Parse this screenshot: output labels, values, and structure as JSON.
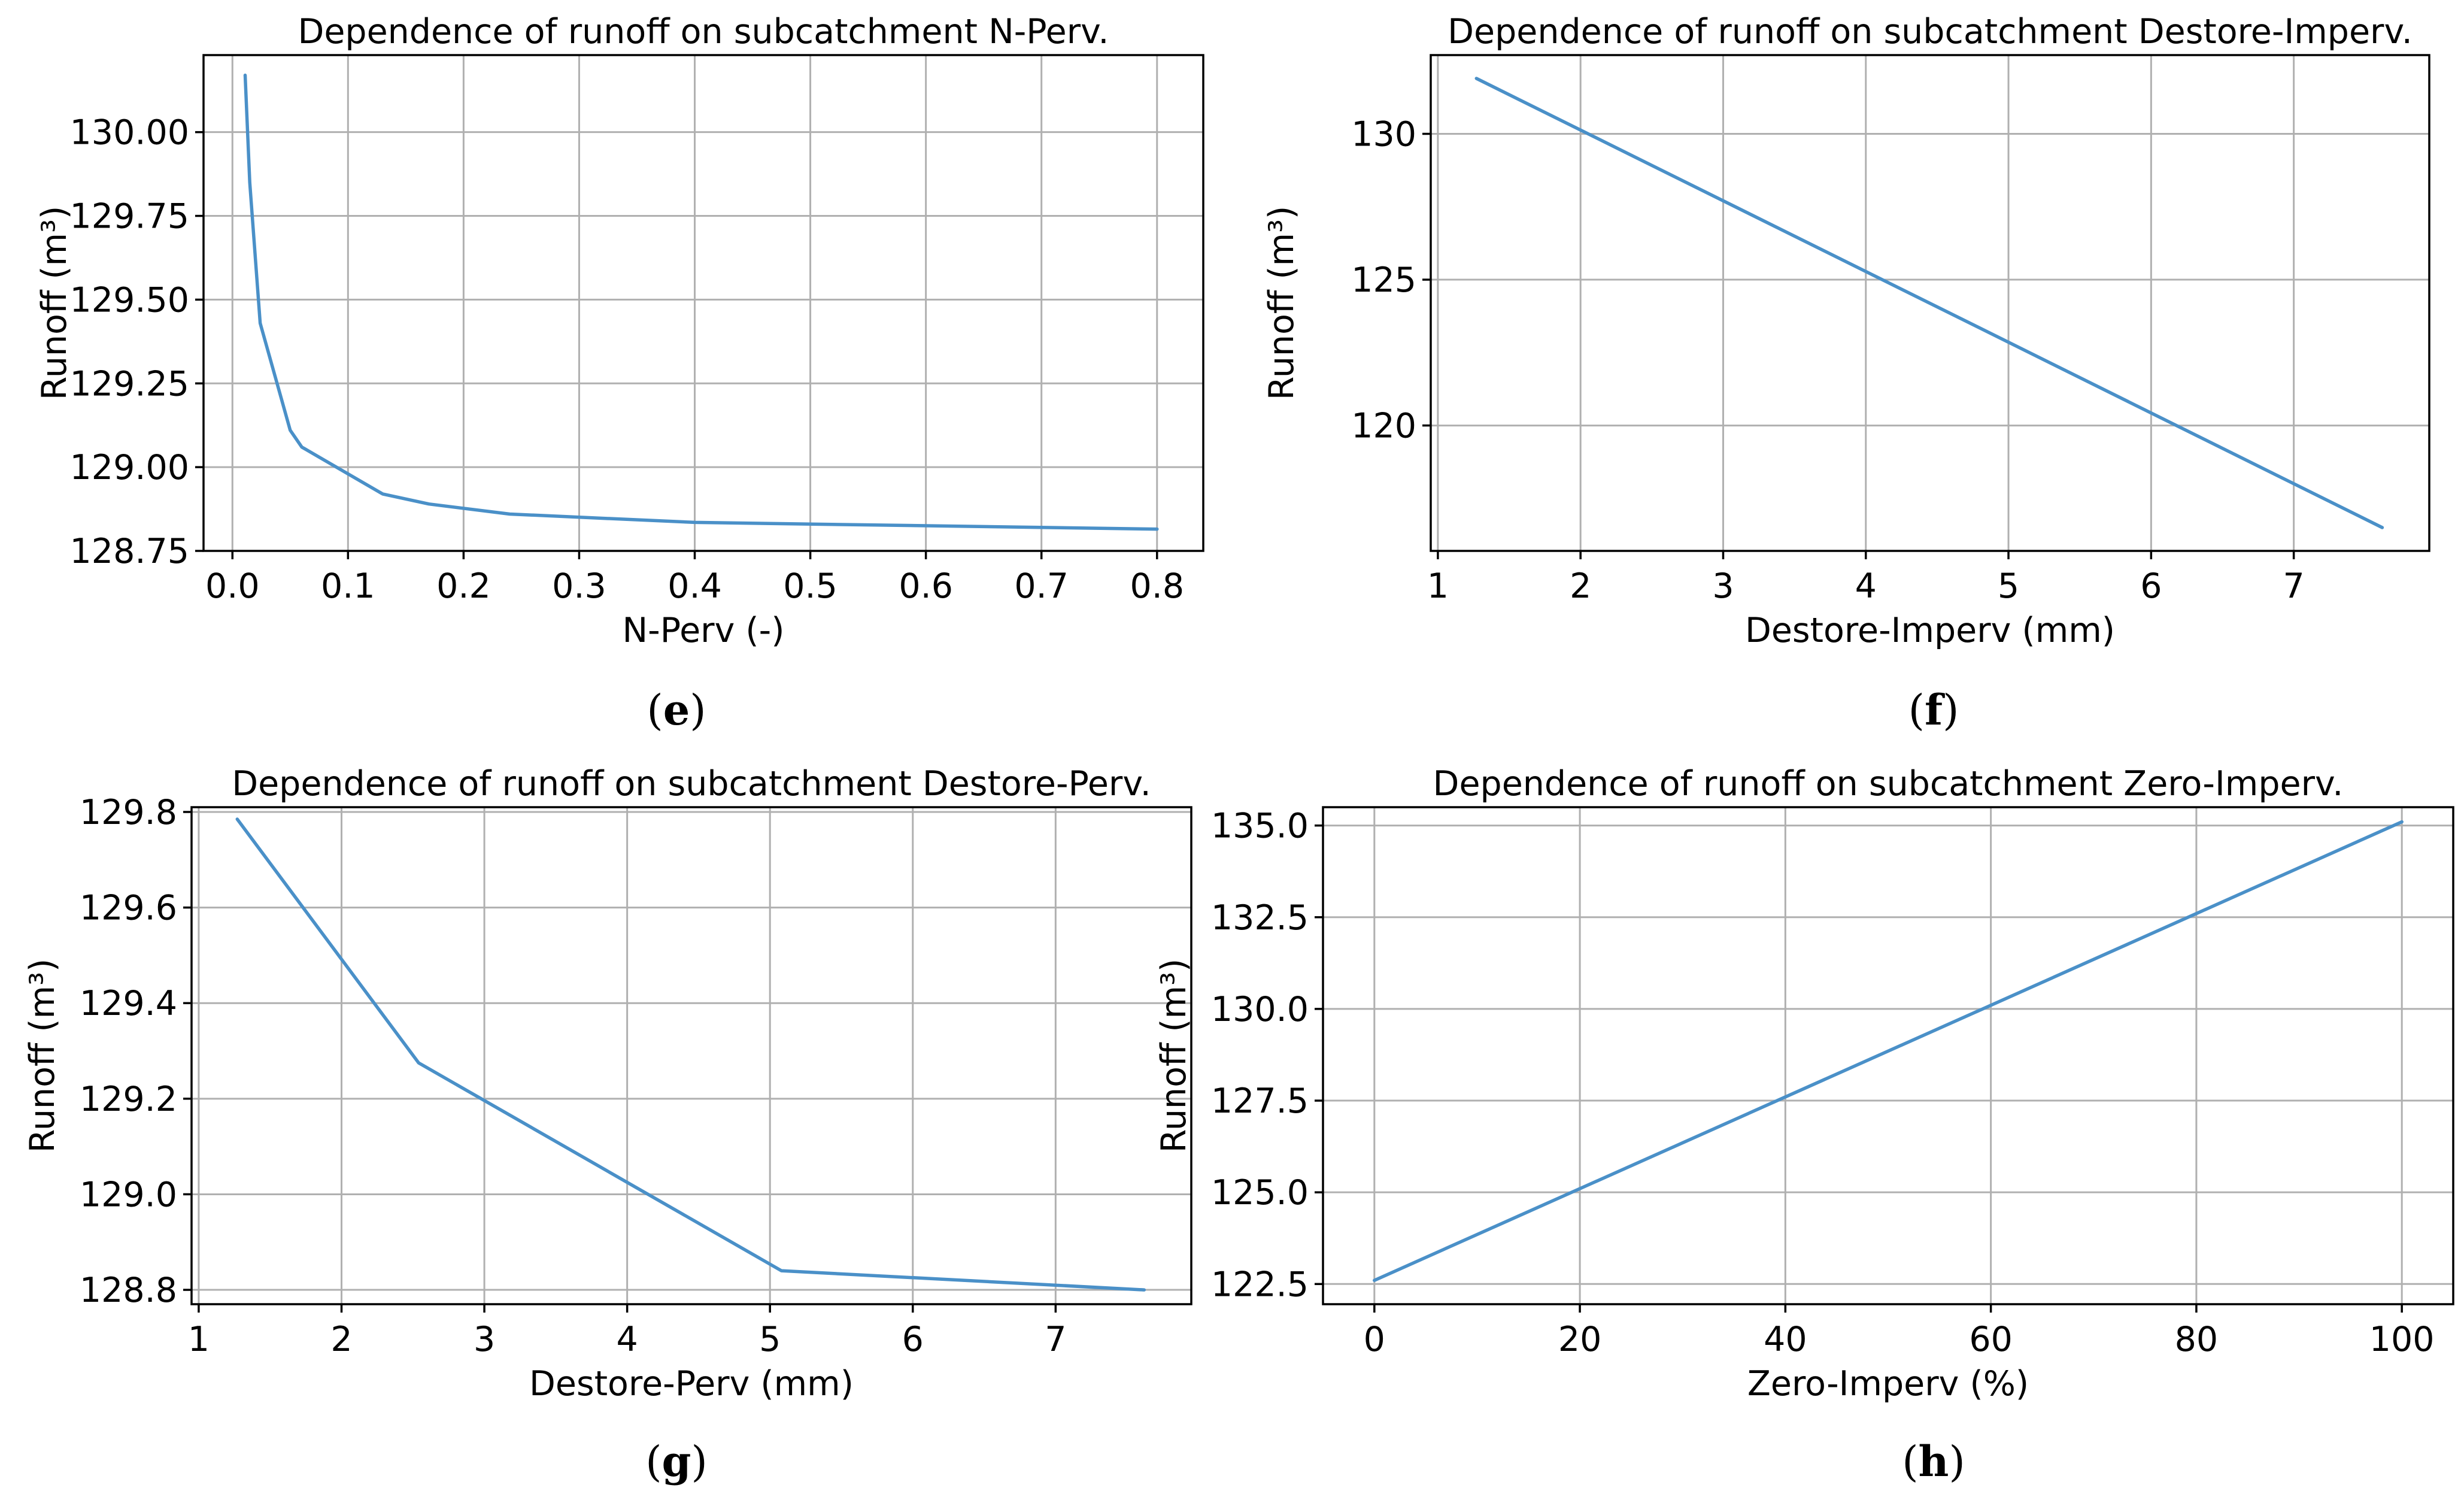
{
  "chart_data": [
    {
      "id": "e",
      "panel_label": "e",
      "type": "line",
      "title": "Dependence of runoff on subcatchment N-Perv.",
      "xlabel": "N-Perv (-)",
      "ylabel": "Runoff (m³)",
      "xlim": [
        -0.025,
        0.84
      ],
      "ylim": [
        128.75,
        130.23
      ],
      "xticks": [
        0.0,
        0.1,
        0.2,
        0.3,
        0.4,
        0.5,
        0.6,
        0.7,
        0.8
      ],
      "xtick_labels": [
        "0.0",
        "0.1",
        "0.2",
        "0.3",
        "0.4",
        "0.5",
        "0.6",
        "0.7",
        "0.8"
      ],
      "yticks": [
        128.75,
        129.0,
        129.25,
        129.5,
        129.75,
        130.0
      ],
      "ytick_labels": [
        "128.75",
        "129.00",
        "129.25",
        "129.50",
        "129.75",
        "130.00"
      ],
      "grid": true,
      "series": [
        {
          "name": "Runoff",
          "color": "#4a90c8",
          "x": [
            0.011,
            0.015,
            0.024,
            0.05,
            0.06,
            0.13,
            0.17,
            0.24,
            0.4,
            0.8
          ],
          "y": [
            130.17,
            129.85,
            129.43,
            129.11,
            129.06,
            128.92,
            128.89,
            128.86,
            128.835,
            128.815
          ]
        }
      ]
    },
    {
      "id": "f",
      "panel_label": "f",
      "type": "line",
      "title": "Dependence of runoff on subcatchment Destore-Imperv.",
      "xlabel": "Destore-Imperv (mm)",
      "ylabel": "Runoff (m³)",
      "xlim": [
        0.95,
        7.95
      ],
      "ylim": [
        115.7,
        132.7
      ],
      "xticks": [
        1,
        2,
        3,
        4,
        5,
        6,
        7
      ],
      "xtick_labels": [
        "1",
        "2",
        "3",
        "4",
        "5",
        "6",
        "7"
      ],
      "yticks": [
        120,
        125,
        130
      ],
      "ytick_labels": [
        "120",
        "125",
        "130"
      ],
      "grid": true,
      "series": [
        {
          "name": "Runoff",
          "color": "#4a90c8",
          "x": [
            1.27,
            7.62
          ],
          "y": [
            131.9,
            116.5
          ]
        }
      ]
    },
    {
      "id": "g",
      "panel_label": "g",
      "type": "line",
      "title": "Dependence of runoff on subcatchment Destore-Perv.",
      "xlabel": "Destore-Perv (mm)",
      "ylabel": "Runoff (m³)",
      "xlim": [
        0.95,
        7.95
      ],
      "ylim": [
        128.77,
        129.81
      ],
      "xticks": [
        1,
        2,
        3,
        4,
        5,
        6,
        7
      ],
      "xtick_labels": [
        "1",
        "2",
        "3",
        "4",
        "5",
        "6",
        "7"
      ],
      "yticks": [
        128.8,
        129.0,
        129.2,
        129.4,
        129.6,
        129.8
      ],
      "ytick_labels": [
        "128.8",
        "129.0",
        "129.2",
        "129.4",
        "129.6",
        "129.8"
      ],
      "grid": true,
      "series": [
        {
          "name": "Runoff",
          "color": "#4a90c8",
          "x": [
            1.27,
            2.54,
            5.08,
            7.62
          ],
          "y": [
            129.785,
            129.275,
            128.84,
            128.8
          ]
        }
      ]
    },
    {
      "id": "h",
      "panel_label": "h",
      "type": "line",
      "title": "Dependence of runoff on subcatchment Zero-Imperv.",
      "xlabel": "Zero-Imperv (%)",
      "ylabel": "Runoff (m³)",
      "xlim": [
        -5,
        105
      ],
      "ylim": [
        121.95,
        135.5
      ],
      "xticks": [
        0,
        20,
        40,
        60,
        80,
        100
      ],
      "xtick_labels": [
        "0",
        "20",
        "40",
        "60",
        "80",
        "100"
      ],
      "yticks": [
        122.5,
        125.0,
        127.5,
        130.0,
        132.5,
        135.0
      ],
      "ytick_labels": [
        "122.5",
        "125.0",
        "127.5",
        "130.0",
        "132.5",
        "135.0"
      ],
      "grid": true,
      "series": [
        {
          "name": "Runoff",
          "color": "#4a90c8",
          "x": [
            0,
            100
          ],
          "y": [
            122.6,
            135.1
          ]
        }
      ]
    }
  ]
}
